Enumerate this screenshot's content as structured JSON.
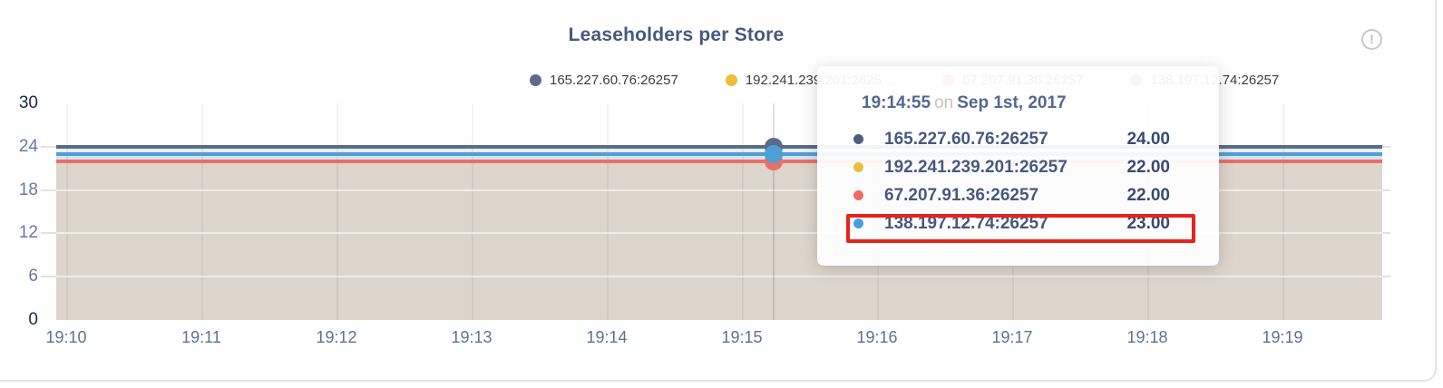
{
  "card": {
    "info_icon": "!"
  },
  "chart_data": {
    "type": "line",
    "title": "Leaseholders per Store",
    "x_ticks": [
      "19:10",
      "19:11",
      "19:12",
      "19:13",
      "19:14",
      "19:15",
      "19:16",
      "19:17",
      "19:18",
      "19:19"
    ],
    "y_ticks": [
      0,
      6,
      12,
      18,
      24,
      30
    ],
    "ylim": [
      0,
      30
    ],
    "grid": true,
    "legend_position": "top",
    "series": [
      {
        "name": "165.227.60.76:26257",
        "legend_label": "165.227.60.76:26257",
        "color": "#5b6b8c",
        "value": 24
      },
      {
        "name": "192.241.239.201:26257",
        "legend_label": "192.241.239.201:2625…",
        "color": "#eebe3a",
        "value": 22
      },
      {
        "name": "67.207.91.36:26257",
        "legend_label": "67.207.91.36:26257",
        "color": "#e8706a",
        "value": 22
      },
      {
        "name": "138.197.12.74:26257",
        "legend_label": "138.197.12.74:26257",
        "color": "#4f9fd6",
        "value": 23
      }
    ],
    "area_colors": {
      "fill_below": "#ded5cc",
      "bands": [
        "#e9eef4",
        "#d4e4f2"
      ]
    },
    "crosshair_x_fraction": 0.541
  },
  "tooltip": {
    "time": "19:14:55",
    "connector": "on",
    "date": "Sep 1st, 2017",
    "rows": [
      {
        "name": "165.227.60.76:26257",
        "value": "24.00",
        "color": "#4f5e80"
      },
      {
        "name": "192.241.239.201:26257",
        "value": "22.00",
        "color": "#eebe3a"
      },
      {
        "name": "67.207.91.36:26257",
        "value": "22.00",
        "color": "#f0695f"
      },
      {
        "name": "138.197.12.74:26257",
        "value": "23.00",
        "color": "#4a9fd8"
      }
    ],
    "highlighted_row_index": 3,
    "highlight_color": "#e8231c"
  }
}
